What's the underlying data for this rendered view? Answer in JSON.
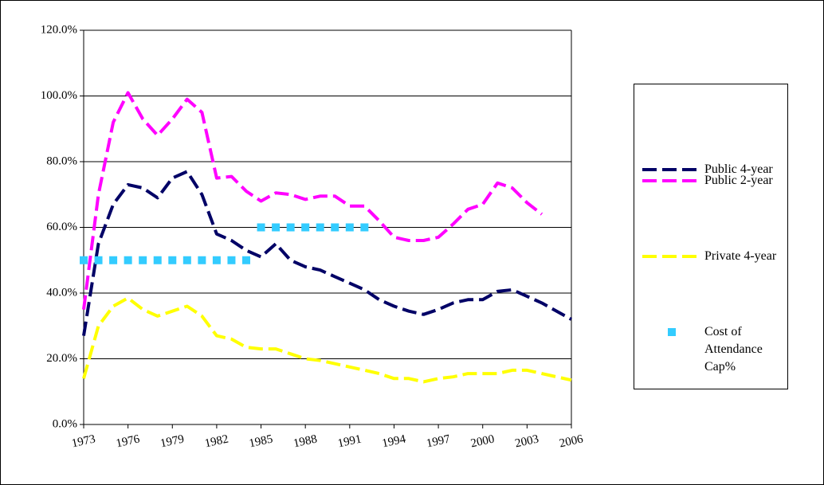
{
  "chart_data": {
    "type": "line",
    "categories": [
      "1973",
      null,
      null,
      "1976",
      null,
      null,
      "1979",
      null,
      null,
      "1982",
      null,
      null,
      "1985",
      null,
      null,
      "1988",
      null,
      null,
      "1991",
      null,
      null,
      "1994",
      null,
      null,
      "1997",
      null,
      null,
      "2000",
      null,
      null,
      "2003",
      null,
      null,
      "2006"
    ],
    "series": [
      {
        "name": "Public 4-year",
        "color": "#000066",
        "style": "dashed",
        "values": [
          27,
          55,
          67,
          73,
          72,
          69,
          75,
          77,
          70,
          58,
          56,
          53,
          51,
          55,
          50,
          48,
          47,
          45,
          43,
          41,
          38,
          36,
          34.5,
          33.5,
          35,
          37,
          38,
          38,
          40.5,
          41,
          39,
          37,
          34.5,
          32
        ]
      },
      {
        "name": "Public 2-year",
        "color": "#ff00ff",
        "style": "dashed",
        "values": [
          35,
          70,
          92,
          101,
          93,
          88,
          93,
          99,
          95,
          75,
          75.5,
          71,
          68,
          70.5,
          70,
          68.5,
          69.5,
          69.5,
          66.5,
          66.5,
          62,
          57,
          56,
          56,
          57,
          61,
          65.5,
          67,
          73.5,
          72,
          67.5,
          64,
          null,
          null
        ]
      },
      {
        "name": "Private 4-year",
        "color": "#ffff00",
        "style": "dashed",
        "values": [
          14,
          30,
          36,
          38.5,
          35,
          33,
          34.5,
          36,
          33,
          27,
          26,
          23.5,
          23,
          23,
          21.5,
          20,
          19.5,
          18.5,
          17.5,
          16.5,
          15.5,
          14,
          14,
          13,
          14,
          14.5,
          15.5,
          15.5,
          15.5,
          16.5,
          16.5,
          15.5,
          14.5,
          13.5
        ]
      },
      {
        "name": "Cost of Attendance Cap%",
        "color": "#33ccff",
        "style": "markers",
        "values": [
          50,
          50,
          50,
          50,
          50,
          50,
          50,
          50,
          50,
          50,
          50,
          50,
          60,
          60,
          60,
          60,
          60,
          60,
          60,
          60,
          null,
          null,
          null,
          null,
          null,
          null,
          null,
          null,
          null,
          null,
          null,
          null,
          null,
          null
        ]
      }
    ],
    "ylim": [
      0,
      120
    ],
    "yticks": [
      {
        "value": 0,
        "label": "0.0%"
      },
      {
        "value": 20,
        "label": "20.0%"
      },
      {
        "value": 40,
        "label": "40.0%"
      },
      {
        "value": 60,
        "label": "60.0%"
      },
      {
        "value": 80,
        "label": "80.0%"
      },
      {
        "value": 100,
        "label": "100.0%"
      },
      {
        "value": 120,
        "label": "120.0%"
      }
    ],
    "grid": true,
    "legend": "right"
  }
}
